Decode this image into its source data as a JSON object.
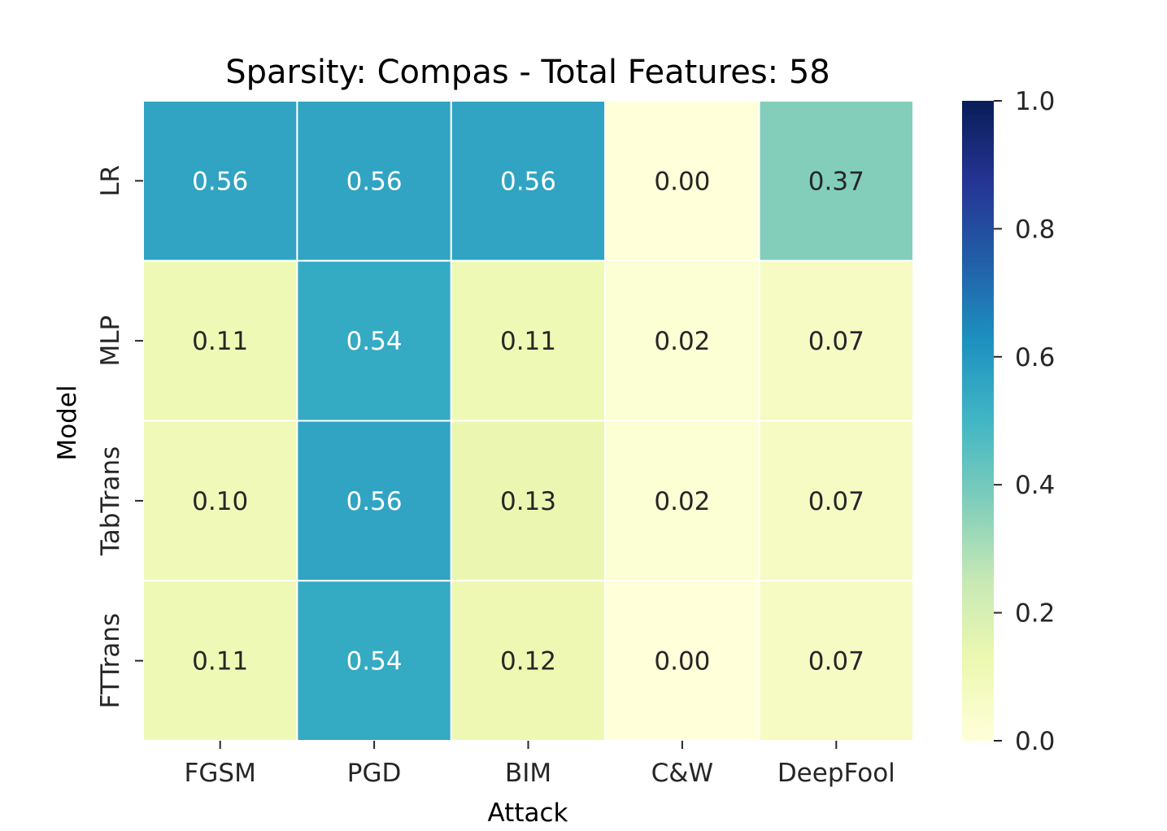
{
  "chart_data": {
    "type": "heatmap",
    "title": "Sparsity: Compas - Total Features: 58",
    "xlabel": "Attack",
    "ylabel": "Model",
    "x_categories": [
      "FGSM",
      "PGD",
      "BIM",
      "C&W",
      "DeepFool"
    ],
    "y_categories": [
      "LR",
      "MLP",
      "TabTrans",
      "FTTrans"
    ],
    "values": [
      [
        0.56,
        0.56,
        0.56,
        0.0,
        0.37
      ],
      [
        0.11,
        0.54,
        0.11,
        0.02,
        0.07
      ],
      [
        0.1,
        0.56,
        0.13,
        0.02,
        0.07
      ],
      [
        0.11,
        0.54,
        0.12,
        0.0,
        0.07
      ]
    ],
    "value_labels": [
      [
        "0.56",
        "0.56",
        "0.56",
        "0.00",
        "0.37"
      ],
      [
        "0.11",
        "0.54",
        "0.11",
        "0.02",
        "0.07"
      ],
      [
        "0.10",
        "0.56",
        "0.13",
        "0.02",
        "0.07"
      ],
      [
        "0.11",
        "0.54",
        "0.12",
        "0.00",
        "0.07"
      ]
    ],
    "colormap": "YlGnBu",
    "vmin": 0.0,
    "vmax": 1.0,
    "colorbar_ticks": [
      "0.0",
      "0.2",
      "0.4",
      "0.6",
      "0.8",
      "1.0"
    ],
    "colors": {
      "cell_border": "#ffffff",
      "annotation_light": "#ffffff",
      "annotation_dark": "#262626"
    }
  }
}
